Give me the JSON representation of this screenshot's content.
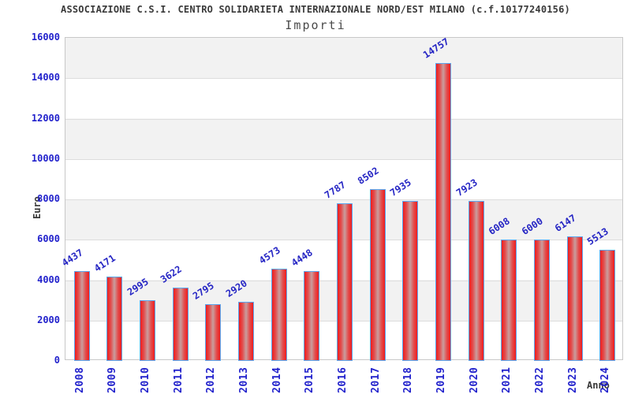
{
  "chart_data": {
    "type": "bar",
    "title": "ASSOCIAZIONE C.S.I. CENTRO SOLIDARIETA INTERNAZIONALE NORD/EST MILANO (c.f.10177240156)",
    "subtitle": "Importi",
    "xlabel": "Anno",
    "ylabel": "Euro",
    "categories": [
      "2008",
      "2009",
      "2010",
      "2011",
      "2012",
      "2013",
      "2014",
      "2015",
      "2016",
      "2017",
      "2018",
      "2019",
      "2020",
      "2021",
      "2022",
      "2023",
      "2024"
    ],
    "values": [
      4437,
      4171,
      2995,
      3622,
      2795,
      2920,
      4573,
      4448,
      7787,
      8502,
      7935,
      14757,
      7923,
      6008,
      6000,
      6147,
      5513
    ],
    "ylim": [
      0,
      16000
    ],
    "yticks": [
      0,
      2000,
      4000,
      6000,
      8000,
      10000,
      12000,
      14000,
      16000
    ],
    "grid": "horizontal-bands",
    "legend": "none",
    "colors": {
      "bar_edge": "#ef1c1c",
      "bar_center": "#c99e9e",
      "bar_border": "#5aa7f0",
      "tick_label": "#2222cc",
      "value_label": "#2525c4",
      "band_gray": "#f2f2f2",
      "band_white": "#ffffff",
      "title_text": "#3a3a3a",
      "axis_title_text": "#383838",
      "plot_border": "#c8c8c8"
    }
  }
}
